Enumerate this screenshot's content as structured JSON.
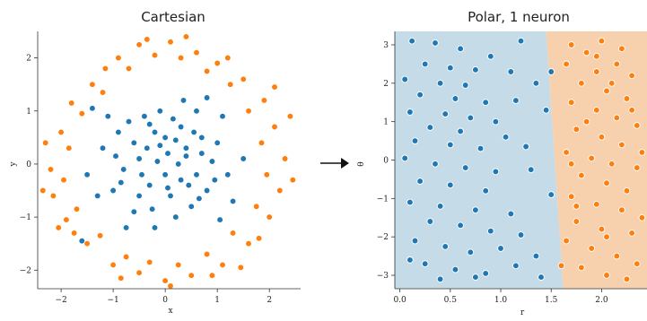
{
  "chart_data": [
    {
      "type": "scatter",
      "title": "Cartesian",
      "xlabel": "x",
      "ylabel": "y",
      "xlim": [
        -2.45,
        2.6
      ],
      "ylim": [
        -2.35,
        2.5
      ],
      "xticks": [
        {
          "v": -2,
          "label": "−2"
        },
        {
          "v": -1,
          "label": "−1"
        },
        {
          "v": 0,
          "label": "0"
        },
        {
          "v": 1,
          "label": "1"
        },
        {
          "v": 2,
          "label": "2"
        }
      ],
      "yticks": [
        {
          "v": -2,
          "label": "−2"
        },
        {
          "v": -1,
          "label": "−1"
        },
        {
          "v": 0,
          "label": "0"
        },
        {
          "v": 1,
          "label": "1"
        },
        {
          "v": 2,
          "label": "2"
        }
      ],
      "colors": {
        "blue": "#1f77b4",
        "orange": "#ff7f0e"
      },
      "series": [
        {
          "color": "blue",
          "points": [
            [
              0.05,
              0.2
            ],
            [
              0.2,
              0.45
            ],
            [
              -0.2,
              0.6
            ],
            [
              0.4,
              0.3
            ],
            [
              -0.5,
              0.1
            ],
            [
              0.6,
              -0.2
            ],
            [
              -0.3,
              -0.4
            ],
            [
              0.1,
              -0.6
            ],
            [
              0.3,
              0.7
            ],
            [
              -0.6,
              0.4
            ],
            [
              0.7,
              0.5
            ],
            [
              -0.8,
              -0.1
            ],
            [
              0.9,
              0.05
            ],
            [
              -0.4,
              0.9
            ],
            [
              0.5,
              -0.8
            ],
            [
              -0.9,
              0.6
            ],
            [
              0.8,
              -0.5
            ],
            [
              -0.1,
              1.0
            ],
            [
              0.2,
              -1.0
            ],
            [
              -1.0,
              -0.5
            ],
            [
              1.0,
              0.4
            ],
            [
              -0.6,
              -0.9
            ],
            [
              0.6,
              1.0
            ],
            [
              -1.2,
              0.3
            ],
            [
              1.2,
              -0.2
            ],
            [
              -0.2,
              -1.2
            ],
            [
              0.35,
              1.2
            ],
            [
              -1.1,
              0.9
            ],
            [
              1.1,
              0.9
            ],
            [
              -1.3,
              -0.6
            ],
            [
              1.3,
              -0.7
            ],
            [
              0.0,
              -0.2
            ],
            [
              -0.15,
              0.05
            ],
            [
              0.25,
              0.0
            ],
            [
              -0.35,
              0.3
            ],
            [
              0.45,
              -0.4
            ],
            [
              0.0,
              0.5
            ],
            [
              -0.5,
              -0.6
            ],
            [
              0.7,
              0.2
            ],
            [
              -0.7,
              0.8
            ],
            [
              0.15,
              0.85
            ],
            [
              -0.25,
              -0.85
            ],
            [
              0.95,
              -0.3
            ],
            [
              -0.95,
              0.15
            ],
            [
              0.55,
              0.6
            ],
            [
              -0.45,
              -0.2
            ],
            [
              0.3,
              -0.3
            ],
            [
              -0.1,
              0.35
            ],
            [
              0.05,
              -0.45
            ],
            [
              -1.4,
              1.05
            ],
            [
              1.05,
              -1.05
            ],
            [
              -0.75,
              -1.2
            ],
            [
              0.8,
              1.25
            ],
            [
              -1.5,
              -0.2
            ],
            [
              1.5,
              0.1
            ],
            [
              -1.6,
              -1.45
            ],
            [
              0.4,
              0.15
            ],
            [
              -0.3,
              0.75
            ],
            [
              0.65,
              -0.65
            ],
            [
              -0.85,
              -0.35
            ]
          ]
        },
        {
          "color": "orange",
          "points": [
            [
              -0.5,
              2.25
            ],
            [
              0.1,
              2.3
            ],
            [
              0.6,
              2.1
            ],
            [
              1.0,
              1.9
            ],
            [
              -0.9,
              2.0
            ],
            [
              1.5,
              1.6
            ],
            [
              -1.4,
              1.5
            ],
            [
              1.9,
              1.2
            ],
            [
              -1.8,
              1.15
            ],
            [
              2.1,
              0.7
            ],
            [
              -2.0,
              0.6
            ],
            [
              2.3,
              0.1
            ],
            [
              -2.2,
              -0.1
            ],
            [
              2.2,
              -0.5
            ],
            [
              -2.15,
              -0.6
            ],
            [
              2.0,
              -1.0
            ],
            [
              -1.9,
              -1.05
            ],
            [
              1.6,
              -1.5
            ],
            [
              -1.5,
              -1.5
            ],
            [
              1.1,
              -1.9
            ],
            [
              -1.0,
              -1.9
            ],
            [
              0.5,
              -2.1
            ],
            [
              -0.5,
              -2.05
            ],
            [
              0.0,
              -2.2
            ],
            [
              0.3,
              2.0
            ],
            [
              -0.2,
              2.05
            ],
            [
              0.8,
              1.75
            ],
            [
              -0.7,
              1.8
            ],
            [
              1.25,
              1.5
            ],
            [
              -1.2,
              1.35
            ],
            [
              1.6,
              1.0
            ],
            [
              -1.6,
              0.95
            ],
            [
              1.85,
              0.4
            ],
            [
              -1.85,
              0.3
            ],
            [
              1.95,
              -0.2
            ],
            [
              -1.95,
              -0.3
            ],
            [
              1.75,
              -0.8
            ],
            [
              -1.7,
              -0.85
            ],
            [
              1.3,
              -1.3
            ],
            [
              -1.25,
              -1.35
            ],
            [
              0.8,
              -1.7
            ],
            [
              -0.75,
              -1.75
            ],
            [
              0.25,
              -1.9
            ],
            [
              -0.3,
              -1.85
            ],
            [
              0.4,
              2.4
            ],
            [
              -0.35,
              2.35
            ],
            [
              1.2,
              2.0
            ],
            [
              -1.15,
              1.8
            ],
            [
              2.4,
              0.9
            ],
            [
              -2.3,
              0.4
            ],
            [
              2.45,
              -0.3
            ],
            [
              -2.35,
              -0.5
            ],
            [
              1.8,
              -1.4
            ],
            [
              -1.75,
              -1.3
            ],
            [
              0.9,
              -2.1
            ],
            [
              -0.85,
              -2.15
            ],
            [
              0.1,
              -2.3
            ],
            [
              2.1,
              1.45
            ],
            [
              -2.05,
              -1.2
            ],
            [
              1.45,
              -1.95
            ]
          ]
        }
      ]
    },
    {
      "type": "scatter",
      "title": "Polar, 1 neuron",
      "xlabel": "r",
      "ylabel": "θ",
      "xlim": [
        -0.05,
        2.45
      ],
      "ylim": [
        -3.35,
        3.35
      ],
      "boundary_r": [
        1.45,
        1.62
      ],
      "xticks": [
        {
          "v": 0.0,
          "label": "0.0"
        },
        {
          "v": 0.5,
          "label": "0.5"
        },
        {
          "v": 1.0,
          "label": "1.0"
        },
        {
          "v": 1.5,
          "label": "1.5"
        },
        {
          "v": 2.0,
          "label": "2.0"
        }
      ],
      "yticks": [
        {
          "v": -3,
          "label": "−3"
        },
        {
          "v": -2,
          "label": "−2"
        },
        {
          "v": -1,
          "label": "−1"
        },
        {
          "v": 0,
          "label": "0"
        },
        {
          "v": 1,
          "label": "1"
        },
        {
          "v": 2,
          "label": "2"
        },
        {
          "v": 3,
          "label": "3"
        }
      ],
      "colors": {
        "blue": "#1f77b4",
        "orange": "#ff7f0e",
        "region_blue": "#c6dbe8",
        "region_orange": "#f7d1ad"
      },
      "series": [
        {
          "color": "blue",
          "points": [
            [
              0.12,
              3.1
            ],
            [
              0.35,
              3.05
            ],
            [
              0.6,
              2.9
            ],
            [
              1.2,
              3.1
            ],
            [
              0.9,
              2.7
            ],
            [
              0.25,
              2.5
            ],
            [
              0.5,
              2.4
            ],
            [
              0.75,
              2.35
            ],
            [
              1.1,
              2.3
            ],
            [
              0.05,
              2.1
            ],
            [
              0.4,
              2.0
            ],
            [
              0.65,
              1.95
            ],
            [
              1.35,
              2.0
            ],
            [
              0.2,
              1.7
            ],
            [
              0.55,
              1.6
            ],
            [
              0.85,
              1.5
            ],
            [
              1.15,
              1.55
            ],
            [
              0.1,
              1.25
            ],
            [
              0.45,
              1.2
            ],
            [
              0.7,
              1.1
            ],
            [
              0.95,
              1.0
            ],
            [
              0.3,
              0.85
            ],
            [
              0.6,
              0.75
            ],
            [
              1.05,
              0.6
            ],
            [
              0.15,
              0.5
            ],
            [
              0.5,
              0.4
            ],
            [
              0.8,
              0.3
            ],
            [
              1.25,
              0.35
            ],
            [
              0.05,
              0.05
            ],
            [
              0.35,
              -0.1
            ],
            [
              0.65,
              -0.2
            ],
            [
              0.95,
              -0.3
            ],
            [
              1.3,
              -0.25
            ],
            [
              0.2,
              -0.55
            ],
            [
              0.5,
              -0.65
            ],
            [
              0.85,
              -0.8
            ],
            [
              1.5,
              -0.9
            ],
            [
              0.1,
              -1.1
            ],
            [
              0.4,
              -1.2
            ],
            [
              0.75,
              -1.3
            ],
            [
              1.1,
              -1.4
            ],
            [
              0.3,
              -1.6
            ],
            [
              0.6,
              -1.7
            ],
            [
              0.9,
              -1.85
            ],
            [
              1.2,
              -1.95
            ],
            [
              0.15,
              -2.1
            ],
            [
              0.45,
              -2.25
            ],
            [
              0.7,
              -2.4
            ],
            [
              1.0,
              -2.3
            ],
            [
              1.35,
              -2.5
            ],
            [
              0.25,
              -2.7
            ],
            [
              0.55,
              -2.85
            ],
            [
              0.85,
              -2.95
            ],
            [
              1.15,
              -2.75
            ],
            [
              0.4,
              -3.1
            ],
            [
              0.75,
              -3.05
            ],
            [
              1.4,
              -3.05
            ],
            [
              0.1,
              -2.6
            ],
            [
              1.45,
              1.3
            ],
            [
              1.5,
              2.3
            ]
          ]
        },
        {
          "color": "orange",
          "points": [
            [
              1.7,
              3.0
            ],
            [
              1.85,
              2.8
            ],
            [
              2.0,
              3.1
            ],
            [
              2.2,
              2.9
            ],
            [
              1.65,
              2.5
            ],
            [
              1.95,
              2.3
            ],
            [
              2.15,
              2.5
            ],
            [
              2.3,
              2.2
            ],
            [
              1.8,
              2.0
            ],
            [
              2.05,
              1.8
            ],
            [
              2.25,
              1.6
            ],
            [
              1.7,
              1.5
            ],
            [
              1.95,
              1.3
            ],
            [
              2.15,
              1.1
            ],
            [
              2.35,
              0.9
            ],
            [
              1.75,
              0.8
            ],
            [
              2.0,
              0.6
            ],
            [
              2.2,
              0.4
            ],
            [
              1.65,
              0.2
            ],
            [
              1.9,
              0.05
            ],
            [
              2.1,
              -0.1
            ],
            [
              2.35,
              -0.2
            ],
            [
              1.8,
              -0.4
            ],
            [
              2.05,
              -0.6
            ],
            [
              2.25,
              -0.8
            ],
            [
              1.7,
              -0.95
            ],
            [
              1.95,
              -1.15
            ],
            [
              2.2,
              -1.3
            ],
            [
              2.4,
              -1.5
            ],
            [
              1.75,
              -1.6
            ],
            [
              2.0,
              -1.8
            ],
            [
              2.3,
              -1.9
            ],
            [
              1.65,
              -2.1
            ],
            [
              1.9,
              -2.3
            ],
            [
              2.15,
              -2.5
            ],
            [
              2.35,
              -2.7
            ],
            [
              1.8,
              -2.8
            ],
            [
              2.05,
              -3.0
            ],
            [
              2.25,
              -3.1
            ],
            [
              1.6,
              -2.75
            ],
            [
              1.85,
              1.0
            ],
            [
              2.1,
              2.0
            ],
            [
              2.3,
              1.3
            ],
            [
              1.7,
              -0.1
            ],
            [
              2.05,
              -2.0
            ],
            [
              1.95,
              2.7
            ],
            [
              2.4,
              0.2
            ],
            [
              1.75,
              -1.2
            ]
          ]
        }
      ]
    }
  ]
}
